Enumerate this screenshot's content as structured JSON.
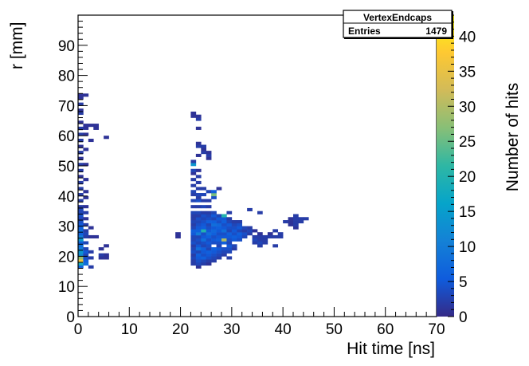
{
  "stats": {
    "title": "VertexEndcaps",
    "entries_label": "Entries",
    "entries_value": "1479"
  },
  "chart_data": {
    "type": "heatmap",
    "title": "VertexEndcaps",
    "xlabel": "Hit time [ns]",
    "ylabel": "r [mm]",
    "zlabel": "Number of hits",
    "xlim": [
      0,
      70
    ],
    "ylim": [
      0,
      100
    ],
    "zlim": [
      0,
      43
    ],
    "x_ticks": [
      0,
      10,
      20,
      30,
      40,
      50,
      60,
      70
    ],
    "y_ticks": [
      0,
      10,
      20,
      30,
      40,
      50,
      60,
      70,
      80,
      90
    ],
    "z_ticks": [
      0,
      5,
      10,
      15,
      20,
      25,
      30,
      35,
      40
    ],
    "bin_width_x": 1,
    "bin_width_y": 1,
    "palette": "kBird",
    "cells": [
      [
        0,
        16,
        6
      ],
      [
        0,
        17,
        18
      ],
      [
        0,
        18,
        36
      ],
      [
        0,
        19,
        28
      ],
      [
        0,
        20,
        12
      ],
      [
        0,
        21,
        14
      ],
      [
        0,
        22,
        10
      ],
      [
        0,
        23,
        8
      ],
      [
        0,
        24,
        6
      ],
      [
        0,
        25,
        14
      ],
      [
        0,
        26,
        10
      ],
      [
        0,
        27,
        6
      ],
      [
        0,
        28,
        8
      ],
      [
        0,
        29,
        6
      ],
      [
        0,
        30,
        5
      ],
      [
        0,
        31,
        4
      ],
      [
        0,
        32,
        3
      ],
      [
        0,
        33,
        4
      ],
      [
        0,
        34,
        3
      ],
      [
        0,
        35,
        3
      ],
      [
        0,
        36,
        2
      ],
      [
        0,
        38,
        2
      ],
      [
        0,
        40,
        2
      ],
      [
        0,
        42,
        2
      ],
      [
        0,
        44,
        2
      ],
      [
        0,
        46,
        1
      ],
      [
        0,
        48,
        2
      ],
      [
        0,
        50,
        2
      ],
      [
        0,
        52,
        1
      ],
      [
        0,
        54,
        2
      ],
      [
        0,
        56,
        1
      ],
      [
        0,
        58,
        2
      ],
      [
        0,
        60,
        2
      ],
      [
        0,
        62,
        2
      ],
      [
        0,
        64,
        1
      ],
      [
        0,
        67,
        2
      ],
      [
        0,
        68,
        1
      ],
      [
        0,
        70,
        2
      ],
      [
        0,
        72,
        1
      ],
      [
        0,
        73,
        1
      ],
      [
        1,
        17,
        8
      ],
      [
        1,
        18,
        6
      ],
      [
        1,
        19,
        4
      ],
      [
        1,
        20,
        3
      ],
      [
        1,
        21,
        5
      ],
      [
        1,
        22,
        3
      ],
      [
        1,
        24,
        3
      ],
      [
        1,
        26,
        2
      ],
      [
        1,
        27,
        3
      ],
      [
        1,
        28,
        2
      ],
      [
        1,
        30,
        2
      ],
      [
        1,
        32,
        1
      ],
      [
        1,
        34,
        2
      ],
      [
        1,
        36,
        1
      ],
      [
        1,
        39,
        1
      ],
      [
        1,
        41,
        1
      ],
      [
        1,
        45,
        1
      ],
      [
        1,
        50,
        1
      ],
      [
        1,
        55,
        1
      ],
      [
        1,
        60,
        1
      ],
      [
        1,
        62,
        1
      ],
      [
        1,
        63,
        1
      ],
      [
        1,
        73,
        1
      ],
      [
        2,
        16,
        2
      ],
      [
        2,
        19,
        2
      ],
      [
        2,
        21,
        2
      ],
      [
        2,
        26,
        1
      ],
      [
        2,
        29,
        1
      ],
      [
        2,
        58,
        1
      ],
      [
        2,
        63,
        1
      ],
      [
        3,
        26,
        1
      ],
      [
        3,
        62,
        1
      ],
      [
        4,
        19,
        1
      ],
      [
        4,
        20,
        2
      ],
      [
        4,
        22,
        1
      ],
      [
        5,
        19,
        1
      ],
      [
        5,
        20,
        1
      ],
      [
        5,
        23,
        1
      ],
      [
        5,
        59,
        1
      ],
      [
        3,
        63,
        1
      ],
      [
        22,
        17,
        2
      ],
      [
        22,
        18,
        2
      ],
      [
        22,
        19,
        3
      ],
      [
        22,
        20,
        2
      ],
      [
        22,
        21,
        4
      ],
      [
        22,
        22,
        3
      ],
      [
        22,
        23,
        2
      ],
      [
        22,
        24,
        4
      ],
      [
        22,
        25,
        3
      ],
      [
        22,
        26,
        3
      ],
      [
        22,
        27,
        5
      ],
      [
        22,
        28,
        6
      ],
      [
        22,
        29,
        3
      ],
      [
        22,
        30,
        2
      ],
      [
        22,
        31,
        3
      ],
      [
        22,
        32,
        2
      ],
      [
        22,
        33,
        2
      ],
      [
        22,
        34,
        3
      ],
      [
        22,
        36,
        2
      ],
      [
        22,
        38,
        3
      ],
      [
        22,
        40,
        2
      ],
      [
        22,
        41,
        3
      ],
      [
        22,
        43,
        2
      ],
      [
        22,
        45,
        2
      ],
      [
        22,
        47,
        1
      ],
      [
        22,
        48,
        3
      ],
      [
        22,
        50,
        14
      ],
      [
        22,
        51,
        2
      ],
      [
        22,
        66,
        1
      ],
      [
        22,
        67,
        1
      ],
      [
        23,
        16,
        1
      ],
      [
        23,
        17,
        3
      ],
      [
        23,
        18,
        4
      ],
      [
        23,
        19,
        5
      ],
      [
        23,
        20,
        6
      ],
      [
        23,
        21,
        3
      ],
      [
        23,
        22,
        8
      ],
      [
        23,
        23,
        5
      ],
      [
        23,
        24,
        3
      ],
      [
        23,
        25,
        4
      ],
      [
        23,
        26,
        3
      ],
      [
        23,
        27,
        10
      ],
      [
        23,
        28,
        6
      ],
      [
        23,
        29,
        5
      ],
      [
        23,
        30,
        4
      ],
      [
        23,
        31,
        3
      ],
      [
        23,
        32,
        4
      ],
      [
        23,
        33,
        2
      ],
      [
        23,
        34,
        3
      ],
      [
        23,
        36,
        2
      ],
      [
        23,
        38,
        4
      ],
      [
        23,
        39,
        2
      ],
      [
        23,
        40,
        3
      ],
      [
        23,
        42,
        2
      ],
      [
        23,
        44,
        2
      ],
      [
        23,
        46,
        2
      ],
      [
        23,
        48,
        1
      ],
      [
        23,
        53,
        1
      ],
      [
        23,
        56,
        2
      ],
      [
        23,
        57,
        1
      ],
      [
        23,
        62,
        1
      ],
      [
        23,
        65,
        2
      ],
      [
        23,
        66,
        1
      ],
      [
        24,
        17,
        2
      ],
      [
        24,
        18,
        3
      ],
      [
        24,
        19,
        6
      ],
      [
        24,
        20,
        4
      ],
      [
        24,
        21,
        5
      ],
      [
        24,
        22,
        6
      ],
      [
        24,
        23,
        3
      ],
      [
        24,
        24,
        4
      ],
      [
        24,
        25,
        8
      ],
      [
        24,
        26,
        5
      ],
      [
        24,
        27,
        4
      ],
      [
        24,
        28,
        20
      ],
      [
        24,
        29,
        6
      ],
      [
        24,
        30,
        5
      ],
      [
        24,
        31,
        4
      ],
      [
        24,
        32,
        3
      ],
      [
        24,
        33,
        4
      ],
      [
        24,
        34,
        2
      ],
      [
        24,
        36,
        3
      ],
      [
        24,
        38,
        2
      ],
      [
        24,
        40,
        3
      ],
      [
        24,
        42,
        2
      ],
      [
        24,
        54,
        2
      ],
      [
        24,
        55,
        1
      ],
      [
        24,
        56,
        2
      ],
      [
        25,
        17,
        1
      ],
      [
        25,
        18,
        2
      ],
      [
        25,
        19,
        4
      ],
      [
        25,
        20,
        5
      ],
      [
        25,
        21,
        6
      ],
      [
        25,
        22,
        3
      ],
      [
        25,
        23,
        4
      ],
      [
        25,
        24,
        5
      ],
      [
        25,
        25,
        4
      ],
      [
        25,
        26,
        6
      ],
      [
        25,
        27,
        8
      ],
      [
        25,
        28,
        5
      ],
      [
        25,
        29,
        4
      ],
      [
        25,
        30,
        3
      ],
      [
        25,
        31,
        6
      ],
      [
        25,
        32,
        4
      ],
      [
        25,
        33,
        3
      ],
      [
        25,
        34,
        2
      ],
      [
        25,
        36,
        2
      ],
      [
        25,
        38,
        2
      ],
      [
        25,
        41,
        3
      ],
      [
        25,
        52,
        1
      ],
      [
        25,
        53,
        2
      ],
      [
        25,
        54,
        1
      ],
      [
        26,
        18,
        2
      ],
      [
        26,
        19,
        3
      ],
      [
        26,
        20,
        4
      ],
      [
        26,
        21,
        5
      ],
      [
        26,
        22,
        6
      ],
      [
        26,
        24,
        4
      ],
      [
        26,
        25,
        5
      ],
      [
        26,
        26,
        4
      ],
      [
        26,
        27,
        6
      ],
      [
        26,
        28,
        7
      ],
      [
        26,
        29,
        5
      ],
      [
        26,
        30,
        8
      ],
      [
        26,
        31,
        6
      ],
      [
        26,
        32,
        3
      ],
      [
        26,
        33,
        5
      ],
      [
        26,
        34,
        3
      ],
      [
        26,
        39,
        4
      ],
      [
        26,
        40,
        26
      ],
      [
        26,
        41,
        6
      ],
      [
        27,
        19,
        2
      ],
      [
        27,
        20,
        3
      ],
      [
        27,
        21,
        4
      ],
      [
        27,
        22,
        5
      ],
      [
        27,
        23,
        3
      ],
      [
        27,
        24,
        4
      ],
      [
        27,
        25,
        6
      ],
      [
        27,
        26,
        5
      ],
      [
        27,
        27,
        4
      ],
      [
        27,
        28,
        5
      ],
      [
        27,
        29,
        6
      ],
      [
        27,
        30,
        7
      ],
      [
        27,
        31,
        4
      ],
      [
        27,
        32,
        5
      ],
      [
        27,
        33,
        3
      ],
      [
        27,
        42,
        1
      ],
      [
        28,
        20,
        2
      ],
      [
        28,
        21,
        3
      ],
      [
        28,
        22,
        4
      ],
      [
        28,
        24,
        6
      ],
      [
        28,
        25,
        30
      ],
      [
        28,
        26,
        5
      ],
      [
        28,
        27,
        4
      ],
      [
        28,
        28,
        8
      ],
      [
        28,
        29,
        5
      ],
      [
        28,
        30,
        4
      ],
      [
        28,
        31,
        6
      ],
      [
        28,
        32,
        5
      ],
      [
        28,
        33,
        20
      ],
      [
        29,
        19,
        2
      ],
      [
        29,
        21,
        3
      ],
      [
        29,
        22,
        4
      ],
      [
        29,
        23,
        5
      ],
      [
        29,
        24,
        3
      ],
      [
        29,
        25,
        4
      ],
      [
        29,
        26,
        5
      ],
      [
        29,
        27,
        6
      ],
      [
        29,
        28,
        3
      ],
      [
        29,
        29,
        4
      ],
      [
        29,
        30,
        5
      ],
      [
        29,
        31,
        3
      ],
      [
        29,
        32,
        2
      ],
      [
        29,
        34,
        2
      ],
      [
        30,
        22,
        2
      ],
      [
        30,
        23,
        3
      ],
      [
        30,
        25,
        5
      ],
      [
        30,
        26,
        6
      ],
      [
        30,
        27,
        4
      ],
      [
        30,
        28,
        5
      ],
      [
        30,
        29,
        4
      ],
      [
        30,
        30,
        3
      ],
      [
        30,
        31,
        2
      ],
      [
        31,
        25,
        4
      ],
      [
        31,
        26,
        5
      ],
      [
        31,
        27,
        6
      ],
      [
        31,
        28,
        3
      ],
      [
        31,
        29,
        5
      ],
      [
        31,
        30,
        4
      ],
      [
        31,
        31,
        2
      ],
      [
        32,
        26,
        3
      ],
      [
        32,
        27,
        4
      ],
      [
        32,
        28,
        2
      ],
      [
        32,
        29,
        3
      ],
      [
        33,
        27,
        2
      ],
      [
        33,
        28,
        3
      ],
      [
        33,
        29,
        2
      ],
      [
        33,
        35,
        2
      ],
      [
        34,
        24,
        2
      ],
      [
        34,
        25,
        3
      ],
      [
        34,
        26,
        2
      ],
      [
        34,
        28,
        1
      ],
      [
        35,
        23,
        2
      ],
      [
        35,
        24,
        3
      ],
      [
        35,
        25,
        2
      ],
      [
        35,
        26,
        2
      ],
      [
        35,
        27,
        1
      ],
      [
        35,
        34,
        2
      ],
      [
        36,
        24,
        2
      ],
      [
        36,
        25,
        2
      ],
      [
        36,
        26,
        2
      ],
      [
        37,
        26,
        2
      ],
      [
        37,
        27,
        1
      ],
      [
        38,
        23,
        2
      ],
      [
        38,
        26,
        2
      ],
      [
        38,
        28,
        2
      ],
      [
        39,
        26,
        2
      ],
      [
        39,
        27,
        2
      ],
      [
        40,
        31,
        2
      ],
      [
        41,
        30,
        1
      ],
      [
        41,
        31,
        1
      ],
      [
        41,
        32,
        1
      ],
      [
        42,
        29,
        1
      ],
      [
        42,
        30,
        2
      ],
      [
        42,
        31,
        2
      ],
      [
        42,
        32,
        2
      ],
      [
        42,
        33,
        2
      ],
      [
        43,
        31,
        2
      ],
      [
        43,
        32,
        2
      ],
      [
        44,
        32,
        2
      ],
      [
        19,
        26,
        1
      ],
      [
        19,
        27,
        1
      ]
    ]
  }
}
